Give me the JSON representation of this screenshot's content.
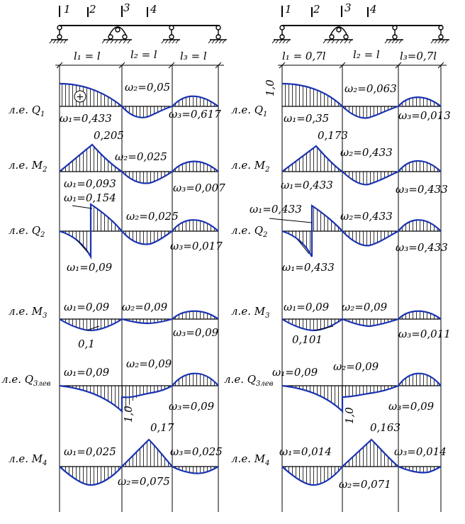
{
  "left": {
    "sections": [
      "1",
      "2",
      "3",
      "4"
    ],
    "spans": [
      "l₁ = l",
      "l₂ = l",
      "l₃ = l"
    ],
    "rows": [
      {
        "label": "л.е. Q",
        "sub": "1",
        "ann": [
          "ω₁=0,433",
          "ω₂=0,05",
          "ω₃=0,617"
        ],
        "sign": "+"
      },
      {
        "label": "л.е. M",
        "sub": "2",
        "ann": [
          "0,205",
          "ω₂=0,025",
          "ω₁=0,093",
          "ω₃=0,007"
        ]
      },
      {
        "label": "л.е. Q",
        "sub": "2",
        "ann": [
          "ω₁=0,154",
          "ω₂=0,025",
          "ω₁=0,09",
          "ω₃=0,017"
        ]
      },
      {
        "label": "л.е. M",
        "sub": "3",
        "ann": [
          "ω₁=0,09",
          "ω₂=0,09",
          "0,1",
          "ω₃=0,09"
        ]
      },
      {
        "label": "л.е. Q",
        "sub": "3лев",
        "ann": [
          "ω₁=0,09",
          "ω₂=0,09",
          "1,0",
          "ω₃=0,09"
        ]
      },
      {
        "label": "л.е. M",
        "sub": "4",
        "ann": [
          "ω₁=0,025",
          "0,17",
          "ω₃=0,025",
          "ω₂=0,075"
        ]
      }
    ]
  },
  "right": {
    "sections": [
      "1",
      "2",
      "3",
      "4"
    ],
    "spans": [
      "l₁ = 0,7l",
      "l₂ = l",
      "l₃=0,7l"
    ],
    "rows": [
      {
        "label": "л.е. Q",
        "sub": "1",
        "ann": [
          "1,0",
          "ω₂=0,063",
          "ω₁=0,35",
          "ω₃=0,013"
        ]
      },
      {
        "label": "л.е. M",
        "sub": "2",
        "ann": [
          "0,173",
          "ω₂=0,433",
          "ω₁=0,433",
          "ω₃=0,433"
        ]
      },
      {
        "label": "л.е. Q",
        "sub": "2",
        "ann": [
          "ω₁=0,433",
          "ω₂=0,433",
          "ω₁=0,433",
          "ω₃=0,433"
        ]
      },
      {
        "label": "л.е. M",
        "sub": "3",
        "ann": [
          "ω₁=0,09",
          "ω₂=0,09",
          "0,101",
          "ω₃=0,011"
        ]
      },
      {
        "label": "л.е. Q",
        "sub": "3лев",
        "ann": [
          "ω₁=0,09",
          "ω₂=0,09",
          "1,0",
          "ω₃=0,09"
        ]
      },
      {
        "label": "л.е. M",
        "sub": "4",
        "ann": [
          "ω₁=0,014",
          "0,163",
          "ω₃=0,014",
          "ω₂=0,071"
        ]
      }
    ]
  }
}
